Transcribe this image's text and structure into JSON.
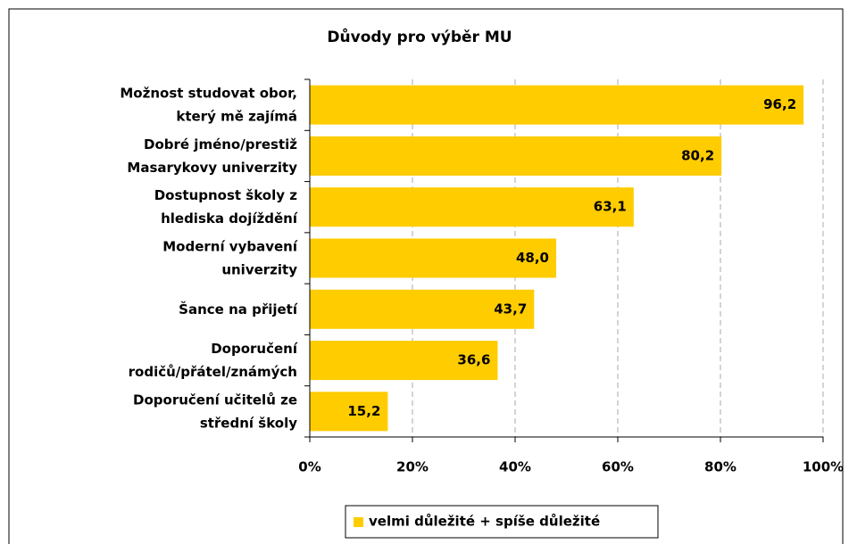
{
  "chart_data": {
    "type": "bar",
    "orientation": "horizontal",
    "title": "Důvody pro výběr MU",
    "categories": [
      [
        "Možnost studovat obor,",
        "který mě zajímá"
      ],
      [
        "Dobré jméno/prestiž",
        "Masarykovy univerzity"
      ],
      [
        "Dostupnost školy z",
        "hlediska dojíždění"
      ],
      [
        "Moderní vybavení",
        "univerzity"
      ],
      [
        "Šance na přijetí"
      ],
      [
        "Doporučení",
        "rodičů/přátel/známých"
      ],
      [
        "Doporučení učitelů ze",
        "střední školy"
      ]
    ],
    "series": [
      {
        "name": "velmi důležité + spíše důležité",
        "color": "#ffcc00",
        "values": [
          96.2,
          80.2,
          63.1,
          48.0,
          43.7,
          36.6,
          15.2
        ],
        "value_labels": [
          "96,2",
          "80,2",
          "63,1",
          "48,0",
          "43,7",
          "36,6",
          "15,2"
        ]
      }
    ],
    "xlim": [
      0,
      100
    ],
    "xticks": [
      {
        "value": 0,
        "label": "0%"
      },
      {
        "value": 20,
        "label": "20%"
      },
      {
        "value": 40,
        "label": "40%"
      },
      {
        "value": 60,
        "label": "60%"
      },
      {
        "value": 80,
        "label": "80%"
      },
      {
        "value": 100,
        "label": "100%"
      }
    ],
    "grid": true,
    "legend": "bottom"
  }
}
